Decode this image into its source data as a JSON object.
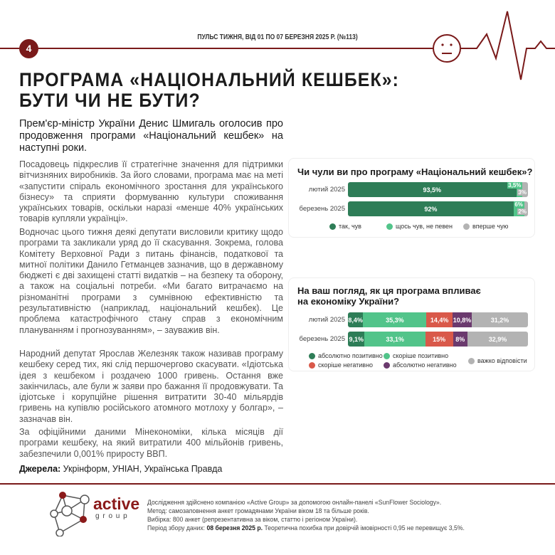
{
  "header": {
    "page_number": "4",
    "issue": "ПУЛЬС ТИЖНЯ, ВІД 01 ПО 07 БЕРЕЗНЯ 2025 Р. (№113)",
    "accent": "#7a1a1a"
  },
  "article": {
    "title_line1": "ПРОГРАМА «НАЦІОНАЛЬНИЙ КЕШБЕК»:",
    "title_line2": "БУТИ ЧИ НЕ БУТИ?",
    "lead": "Прем'єр-міністр України Денис Шмигаль оголосив про продовження програми «Національний кешбек» на наступні роки.",
    "paragraphs": [
      "Посадовець підкреслив її стратегічне значення для підтримки вітчизняних виробників. За його словами, програма має на меті «запустити спіраль економічного зростання для українського бізнесу» та сприяти формуванню культури споживання українських товарів, оскільки наразі «менше 40% українських товарів купляли українці».",
      "Водночас цього тижня деякі депутати висловили критику щодо програми та закликали уряд до її скасування. Зокрема, голова Комітету Верховної Ради з питань фінансів, податкової та митної політики Данило Гетманцев зазначив, що в державному бюджеті є дві захищені статті видатків – на безпеку та оборону, а також на соціальні потреби. «Ми багато витрачаємо на різноманітні програми з сумнівною ефективністю та результативністю (наприклад, національний кешбек). Це проблема катастрофічного стану справ з економічним плануванням і прогнозуванням», – зауважив він.",
      "Народний депутат Ярослав Железняк також називав програму кешбеку серед тих, які слід першочергово скасувати. «Ідіотська ідея з кешбеком і роздачею 1000 гривень. Остання вже закінчилась, але були ж заяви про бажання її продовжувати. Та ідіотське і корупційне рішення витратити 30-40 мільярдів гривень на купівлю російського атомного мотлоху у болгар», – зазначав він.",
      "За офіційними даними Мінекономіки, кілька місяців дії програми кешбеку, на який витратили 400 мільйонів гривень, забезпечили 0,001% приросту ВВП."
    ],
    "sources_label": "Джерела:",
    "sources": " Укрінформ, УНІАН, Українська Правда"
  },
  "chart_data": [
    {
      "type": "bar",
      "stacked": true,
      "orientation": "horizontal",
      "title": "Чи чули ви про програму «Національний кешбек»?",
      "categories": [
        "лютий 2025",
        "березень 2025"
      ],
      "series": [
        {
          "name": "так, чув",
          "color": "#2e7d57",
          "values": [
            93.5,
            92
          ],
          "labels": [
            "93,5%",
            "92%"
          ]
        },
        {
          "name": "щось чув, не певен",
          "color": "#52c48a",
          "values": [
            3.5,
            6
          ],
          "labels": [
            "3,5%",
            "6%"
          ]
        },
        {
          "name": "вперше чую",
          "color": "#b3b3b3",
          "values": [
            3,
            2
          ],
          "labels": [
            "3%",
            "2%"
          ]
        }
      ],
      "legend": "bottom"
    },
    {
      "type": "bar",
      "stacked": true,
      "orientation": "horizontal",
      "title": "На ваш погляд, як ця програма впливає на економіку України?",
      "categories": [
        "лютий 2025",
        "березень 2025"
      ],
      "series": [
        {
          "name": "абсолютно позитивно",
          "color": "#2e7d57",
          "values": [
            8.4,
            9.1
          ],
          "labels": [
            "8,4%",
            "9,1%"
          ]
        },
        {
          "name": "скоріше позитивно",
          "color": "#52c48a",
          "values": [
            35.3,
            33.1
          ],
          "labels": [
            "35,3%",
            "33,1%"
          ]
        },
        {
          "name": "скоріше негативно",
          "color": "#d9594a",
          "values": [
            14.4,
            15
          ],
          "labels": [
            "14,4%",
            "15%"
          ]
        },
        {
          "name": "абсолютно негативно",
          "color": "#6b3a6e",
          "values": [
            10.8,
            8
          ],
          "labels": [
            "10,8%",
            "8%"
          ]
        },
        {
          "name": "важко відповісти",
          "color": "#b3b3b3",
          "values": [
            31.2,
            32.9
          ],
          "labels": [
            "31,2%",
            "32,9%"
          ]
        }
      ],
      "legend": "bottom"
    }
  ],
  "footer": {
    "logo_text": "active",
    "logo_sub": "g r o u p",
    "line1": "Дослідження здійснено компанією «Active Group» за допомогою онлайн-панелі «SunFlower Sociology».",
    "line2": "Метод: самозаповнення анкет громадянами України віком 18 та більше років.",
    "line3": "Вибірка: 800 анкет (репрезентативна за віком, статтю і регіоном України).",
    "line4_label": "Період збору даних: ",
    "line4_date": "08 березня 2025 р.",
    "line4_rest": " Теоретична похибка при довірчій імовірності 0,95 не перевищує 3,5%."
  }
}
